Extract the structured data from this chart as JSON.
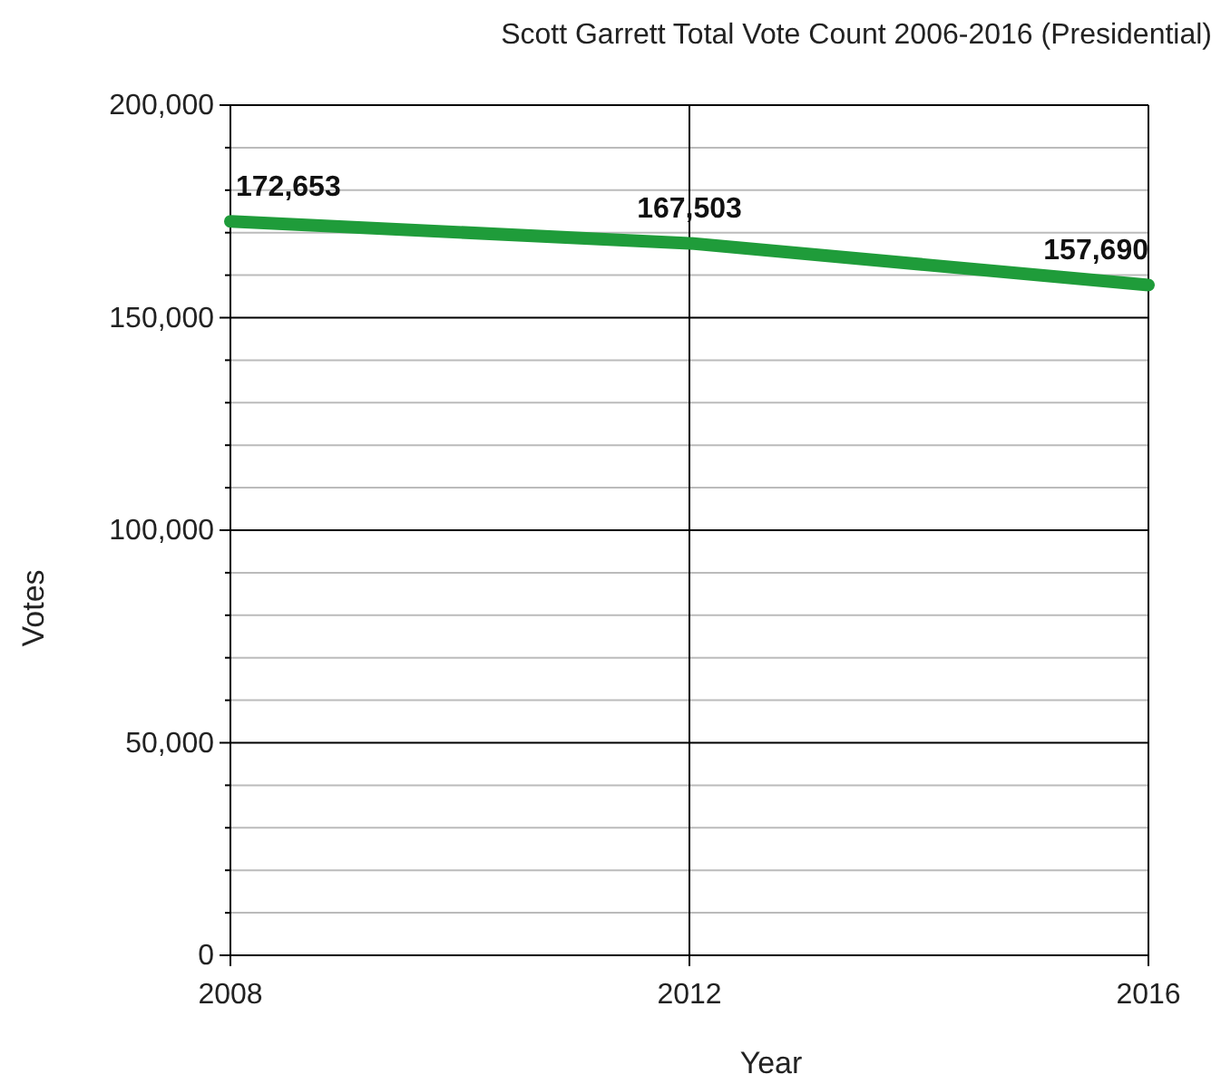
{
  "chart_data": {
    "type": "line",
    "title": "Scott Garrett Total Vote Count 2006-2016 (Presidential)",
    "xlabel": "Year",
    "ylabel": "Votes",
    "x": [
      2008,
      2012,
      2016
    ],
    "series": [
      {
        "color": "#1f9c3a",
        "values": [
          172653,
          167503,
          157690
        ],
        "value_labels": [
          "172,653",
          "167,503",
          "157,690"
        ]
      }
    ],
    "marker": "none",
    "line_style": "solid",
    "grid": true,
    "xlim": [
      2008,
      2016
    ],
    "xticks": [
      2008,
      2012,
      2016
    ],
    "ylim": [
      0,
      200000
    ],
    "yticks": [
      0,
      {
        "value": 10000,
        "label": null
      },
      {
        "value": 20000,
        "label": null
      },
      {
        "value": 30000,
        "label": null
      },
      {
        "value": 40000,
        "label": null
      },
      {
        "value": 50000,
        "label": "50,000"
      },
      {
        "value": 60000,
        "label": null
      },
      {
        "value": 70000,
        "label": null
      },
      {
        "value": 80000,
        "label": null
      },
      {
        "value": 90000,
        "label": null
      },
      {
        "value": 100000,
        "label": "100,000"
      },
      {
        "value": 110000,
        "label": null
      },
      {
        "value": 120000,
        "label": null
      },
      {
        "value": 130000,
        "label": null
      },
      {
        "value": 140000,
        "label": null
      },
      {
        "value": 150000,
        "label": "150,000"
      },
      {
        "value": 160000,
        "label": null
      },
      {
        "value": 170000,
        "label": null
      },
      {
        "value": 180000,
        "label": null
      },
      {
        "value": 190000,
        "label": null
      },
      {
        "value": 200000,
        "label": "200,000"
      }
    ]
  }
}
